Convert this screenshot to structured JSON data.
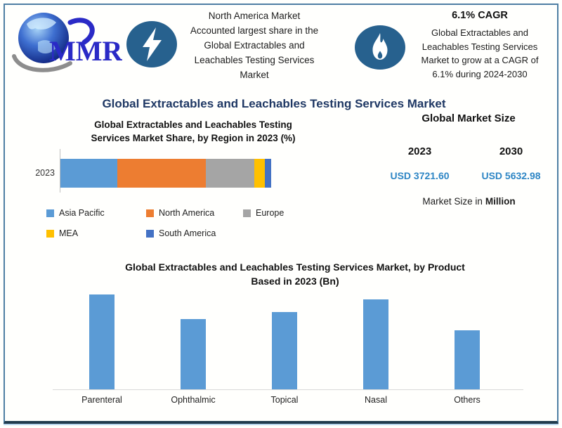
{
  "brand": {
    "logo_text": "MMR",
    "logo_color": "#2a2ac6",
    "badge_color": "#27618e"
  },
  "header": {
    "left_callout": {
      "icon": "lightning-icon",
      "lines": [
        "North America Market",
        "Accounted largest share in the",
        "Global Extractables and",
        "Leachables Testing Services",
        "Market"
      ]
    },
    "right_callout": {
      "icon": "flame-icon",
      "title": "6.1% CAGR",
      "lines": [
        "Global Extractables and",
        "Leachables Testing Services",
        "Market to grow at a CAGR of",
        "6.1% during 2024-2030"
      ]
    }
  },
  "main_title": "Global Extractables and Leachables Testing Services Market",
  "main_title_color": "#1f3864",
  "market_size": {
    "title": "Global Market Size",
    "columns": [
      {
        "year": "2023",
        "value": "USD 3721.60"
      },
      {
        "year": "2030",
        "value": "USD 5632.98"
      }
    ],
    "value_color": "#2e86c5",
    "note_prefix": "Market Size in",
    "note_bold": "Million"
  },
  "chart_data": [
    {
      "type": "bar",
      "subtype": "horizontal-stacked",
      "title": "Global Extractables and Leachables Testing Services Market Share, by Region in 2023 (%)",
      "title_lines": [
        "Global Extractables and Leachables Testing",
        "Services Market Share, by Region in 2023 (%)"
      ],
      "categories": [
        "2023"
      ],
      "series": [
        {
          "name": "Asia Pacific",
          "color": "#5b9bd5",
          "values": [
            27
          ]
        },
        {
          "name": "North America",
          "color": "#ed7d31",
          "values": [
            42
          ]
        },
        {
          "name": "Europe",
          "color": "#a5a5a5",
          "values": [
            23
          ]
        },
        {
          "name": "MEA",
          "color": "#ffc000",
          "values": [
            5
          ]
        },
        {
          "name": "South America",
          "color": "#4472c4",
          "values": [
            3
          ]
        }
      ],
      "unit": "%",
      "xlim": [
        0,
        100
      ],
      "grid": false,
      "legend_position": "bottom"
    },
    {
      "type": "bar",
      "title": "Global Extractables and Leachables Testing Services Market, by Product Based in 2023 (Bn)",
      "title_lines": [
        "Global Extractables and Leachables Testing Services Market, by Product",
        "Based in 2023 (Bn)"
      ],
      "categories": [
        "Parenteral",
        "Ophthalmic",
        "Topical",
        "Nasal",
        "Others"
      ],
      "values": [
        1.35,
        1.0,
        1.1,
        1.28,
        0.84
      ],
      "bar_color": "#5b9bd5",
      "ylabel": "",
      "xlabel": "",
      "ylim": [
        0,
        1.4
      ],
      "grid": false
    }
  ]
}
